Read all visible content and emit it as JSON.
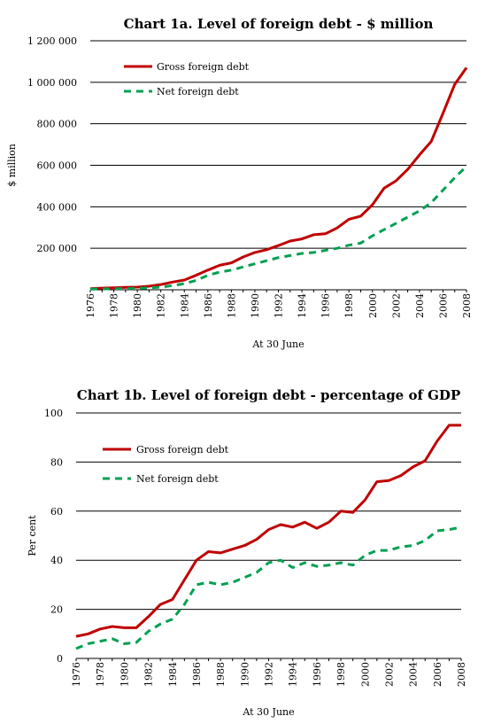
{
  "chart_data": [
    {
      "type": "line",
      "title": "Chart 1a. Level of foreign debt - $ million",
      "xlabel": "At 30 June",
      "ylabel": "$ million",
      "ylim": [
        0,
        1200000
      ],
      "yticks": [
        200000,
        400000,
        600000,
        800000,
        1000000,
        1200000
      ],
      "ytick_labels": [
        "200 000",
        "400 000",
        "600 000",
        "800 000",
        "1 000 000",
        "1 200 000"
      ],
      "grid": true,
      "legend": "top-left",
      "x": [
        1976,
        1977,
        1978,
        1979,
        1980,
        1981,
        1982,
        1983,
        1984,
        1985,
        1986,
        1987,
        1988,
        1989,
        1990,
        1991,
        1992,
        1993,
        1994,
        1995,
        1996,
        1997,
        1998,
        1999,
        2000,
        2001,
        2002,
        2003,
        2004,
        2005,
        2006,
        2007,
        2008
      ],
      "xtick_labels": [
        "1976",
        "1978",
        "1980",
        "1982",
        "1984",
        "1986",
        "1988",
        "1990",
        "1992",
        "1994",
        "1996",
        "1998",
        "2000",
        "2002",
        "2004",
        "2006",
        "2008"
      ],
      "series": [
        {
          "name": "Gross foreign debt",
          "color": "#c00000",
          "style": "solid",
          "values": [
            5000,
            8000,
            10000,
            12000,
            13000,
            17000,
            25000,
            37000,
            47000,
            70000,
            95000,
            118000,
            130000,
            158000,
            180000,
            193000,
            213000,
            235000,
            245000,
            265000,
            270000,
            298000,
            340000,
            355000,
            410000,
            490000,
            525000,
            580000,
            650000,
            715000,
            850000,
            990000,
            1070000
          ]
        },
        {
          "name": "Net foreign debt",
          "color": "#00a050",
          "style": "dashed",
          "values": [
            3000,
            4000,
            5000,
            6000,
            7000,
            9000,
            13000,
            20000,
            30000,
            45000,
            70000,
            85000,
            95000,
            110000,
            125000,
            140000,
            155000,
            165000,
            175000,
            180000,
            190000,
            200000,
            215000,
            225000,
            260000,
            290000,
            320000,
            350000,
            380000,
            420000,
            480000,
            540000,
            595000
          ]
        }
      ]
    },
    {
      "type": "line",
      "title": "Chart 1b. Level of foreign debt - percentage of GDP",
      "xlabel": "At 30 June",
      "ylabel": "Per cent",
      "ylim": [
        0,
        100
      ],
      "yticks": [
        0,
        20,
        40,
        60,
        80,
        100
      ],
      "ytick_labels": [
        "0",
        "20",
        "40",
        "60",
        "80",
        "100"
      ],
      "grid": true,
      "legend": "top-left",
      "x": [
        1976,
        1977,
        1978,
        1979,
        1980,
        1981,
        1982,
        1983,
        1984,
        1985,
        1986,
        1987,
        1988,
        1989,
        1990,
        1991,
        1992,
        1993,
        1994,
        1995,
        1996,
        1997,
        1998,
        1999,
        2000,
        2001,
        2002,
        2003,
        2004,
        2005,
        2006,
        2007,
        2008
      ],
      "xtick_labels": [
        "1976",
        "1978",
        "1980",
        "1982",
        "1984",
        "1986",
        "1988",
        "1990",
        "1992",
        "1994",
        "1996",
        "1998",
        "2000",
        "2002",
        "2004",
        "2006",
        "2008"
      ],
      "series": [
        {
          "name": "Gross foreign debt",
          "color": "#c00000",
          "style": "solid",
          "values": [
            9,
            10,
            12,
            13,
            12.5,
            12.5,
            17,
            22,
            24,
            32,
            40,
            43.5,
            43,
            44.5,
            46,
            48.5,
            52.5,
            54.5,
            53.5,
            55.5,
            53,
            55.5,
            60,
            59.5,
            64.5,
            72,
            72.5,
            74.5,
            78,
            80.5,
            88.5,
            95,
            95
          ]
        },
        {
          "name": "Net foreign debt",
          "color": "#00a050",
          "style": "dashed",
          "values": [
            4,
            6,
            7,
            8,
            6,
            6.5,
            11,
            14,
            16,
            22,
            30,
            31,
            30,
            31,
            33,
            35,
            39,
            40,
            37,
            39,
            37.5,
            38,
            39,
            38,
            42,
            44,
            44,
            45.5,
            46,
            48,
            52,
            52.5,
            53.5
          ]
        }
      ]
    }
  ]
}
